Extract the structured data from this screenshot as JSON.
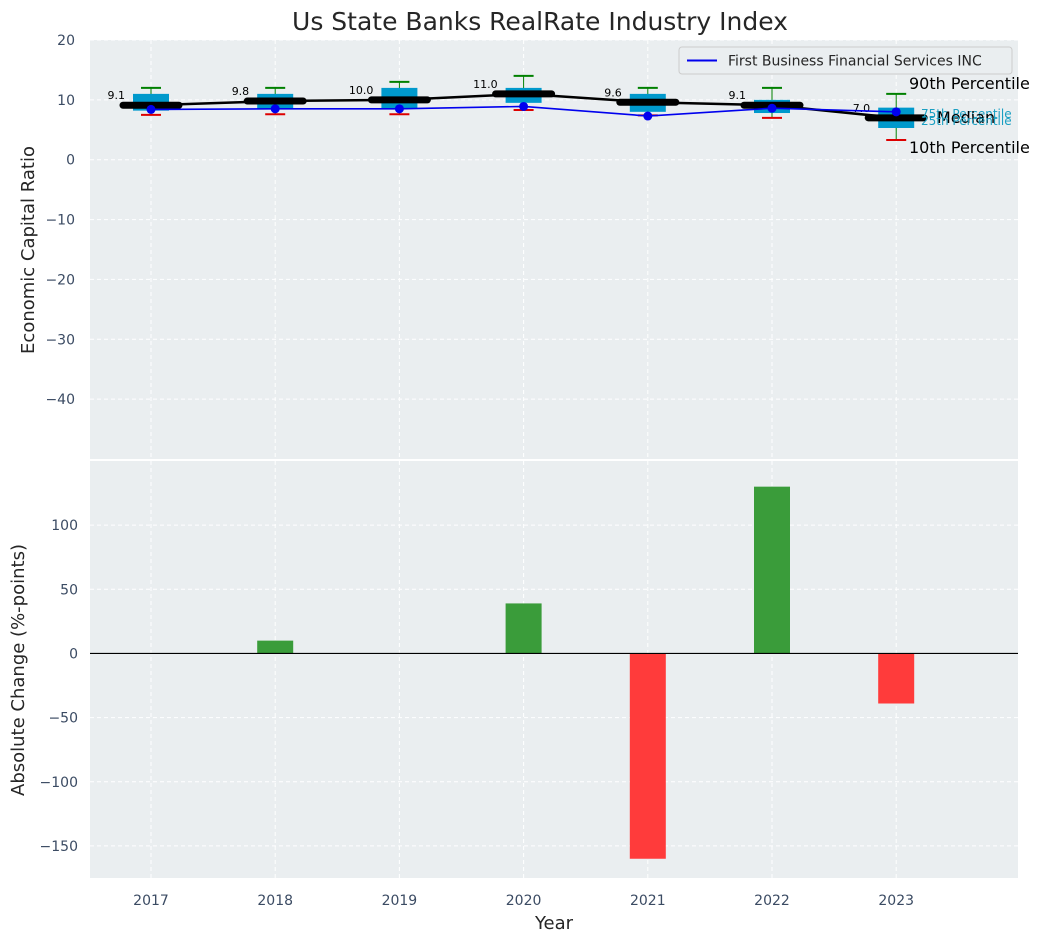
{
  "chart_data": [
    {
      "type": "box",
      "title": "Us State Banks RealRate Industry Index",
      "ylabel": "Economic Capital Ratio",
      "ylim": [
        -50,
        20
      ],
      "yticks": [
        20,
        10,
        0,
        -10,
        -20,
        -30,
        -40
      ],
      "grid": true,
      "legend_position": "top-right",
      "categories": [
        "2017",
        "2018",
        "2019",
        "2020",
        "2021",
        "2022",
        "2023"
      ],
      "boxes": [
        {
          "year": "2017",
          "p10": 7.5,
          "p25": 8.2,
          "median": 9.1,
          "p75": 11.0,
          "p90": 12.0
        },
        {
          "year": "2018",
          "p10": 7.6,
          "p25": 8.5,
          "median": 9.8,
          "p75": 11.0,
          "p90": 12.0
        },
        {
          "year": "2019",
          "p10": 7.6,
          "p25": 8.5,
          "median": 10.0,
          "p75": 12.0,
          "p90": 13.0
        },
        {
          "year": "2020",
          "p10": 8.3,
          "p25": 9.5,
          "median": 11.0,
          "p75": 12.0,
          "p90": 14.0
        },
        {
          "year": "2021",
          "p10": 7.4,
          "p25": 8.0,
          "median": 9.6,
          "p75": 11.0,
          "p90": 12.0
        },
        {
          "year": "2022",
          "p10": 7.0,
          "p25": 7.8,
          "median": 9.1,
          "p75": 10.0,
          "p90": 12.0
        },
        {
          "year": "2023",
          "p10": 3.3,
          "p25": 5.3,
          "median": 7.0,
          "p75": 8.7,
          "p90": 11.0
        }
      ],
      "median_labels": [
        "9.1",
        "9.8",
        "10.0",
        "11.0",
        "9.6",
        "9.1",
        "7.0"
      ],
      "series": [
        {
          "name": "First Business Financial Services INC",
          "color": "#0000ee",
          "values": [
            8.4,
            8.5,
            8.5,
            8.9,
            7.3,
            8.6,
            8.0
          ]
        }
      ],
      "percentile_labels": {
        "p90": "90th Percentile",
        "p75": "75th Percentile",
        "median": "Median",
        "p25": "25th Percentile",
        "p10": "10th Percentile"
      },
      "colors": {
        "box": "#0099cc",
        "median_line": "#000000",
        "whisker_top": "#008000",
        "whisker_bottom": "#dd0000",
        "company_line": "#0000ee",
        "percentile_small_text": "#1a9fc2"
      }
    },
    {
      "type": "bar",
      "xlabel": "Year",
      "ylabel": "Absolute Change (%-points)",
      "ylim": [
        -175,
        150
      ],
      "yticks": [
        100,
        50,
        0,
        -50,
        -100,
        -150
      ],
      "grid": true,
      "categories": [
        "2017",
        "2018",
        "2019",
        "2020",
        "2021",
        "2022",
        "2023"
      ],
      "values": [
        0,
        10,
        0,
        39,
        -160,
        130,
        -39
      ],
      "colors": {
        "positive": "#3a9c3a",
        "negative": "#ff3b3b",
        "zero_line": "#000000"
      }
    }
  ]
}
